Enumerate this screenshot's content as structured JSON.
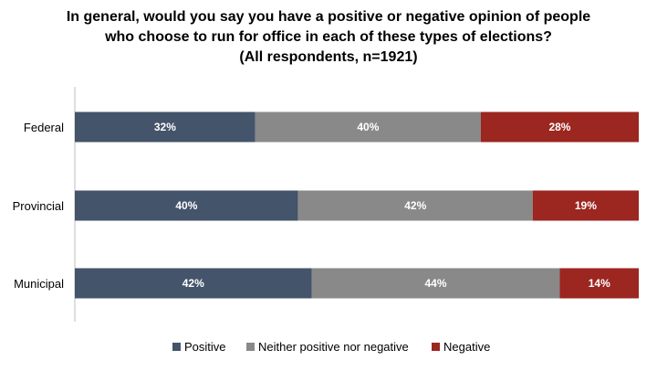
{
  "chart_data": {
    "type": "bar",
    "orientation": "horizontal",
    "stacked": true,
    "title": [
      "In general, would you say you have a positive or negative opinion of people",
      "who choose to run for office in each of these types of elections?",
      "(All respondents, n=1921)"
    ],
    "categories": [
      "Federal",
      "Provincial",
      "Municipal"
    ],
    "series": [
      {
        "name": "Positive",
        "color": "#44546a",
        "values": [
          32,
          40,
          42
        ]
      },
      {
        "name": "Neither positive nor negative",
        "color": "#898989",
        "values": [
          40,
          42,
          44
        ]
      },
      {
        "name": "Negative",
        "color": "#9c2620",
        "values": [
          28,
          19,
          14
        ]
      }
    ],
    "data_labels": [
      [
        "32%",
        "40%",
        "42%"
      ],
      [
        "40%",
        "42%",
        "44%"
      ],
      [
        "28%",
        "19%",
        "14%"
      ]
    ],
    "xlim": [
      0,
      100
    ],
    "grid": false,
    "legend_position": "bottom"
  }
}
